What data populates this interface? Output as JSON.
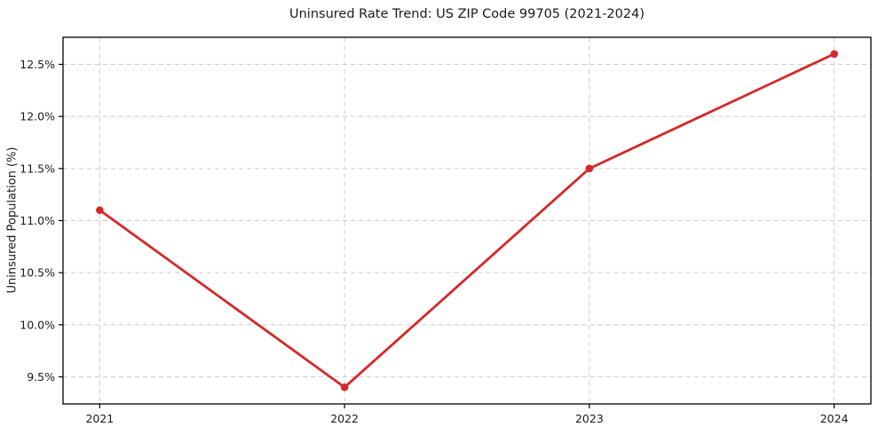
{
  "chart_data": {
    "type": "line",
    "title": "Uninsured Rate Trend: US ZIP Code 99705 (2021-2024)",
    "xlabel": "",
    "ylabel": "Uninsured Population (%)",
    "x": [
      2021,
      2022,
      2023,
      2024
    ],
    "x_tick_labels": [
      "2021",
      "2022",
      "2023",
      "2024"
    ],
    "series": [
      {
        "name": "Uninsured rate",
        "values": [
          11.1,
          9.4,
          11.5,
          12.6
        ]
      }
    ],
    "y_ticks": [
      9.5,
      10.0,
      10.5,
      11.0,
      11.5,
      12.0,
      12.5
    ],
    "y_tick_labels": [
      "9.5%",
      "10.0%",
      "10.5%",
      "11.0%",
      "11.5%",
      "12.0%",
      "12.5%"
    ],
    "xlim": [
      2020.85,
      2024.15
    ],
    "ylim": [
      9.24,
      12.76
    ],
    "grid": true,
    "legend": "none",
    "line_color": "#d62728",
    "marker": "circle",
    "grid_color": "#cccccc",
    "axis_color": "#000000",
    "text_color": "#1a1a1a",
    "background": "#ffffff"
  }
}
